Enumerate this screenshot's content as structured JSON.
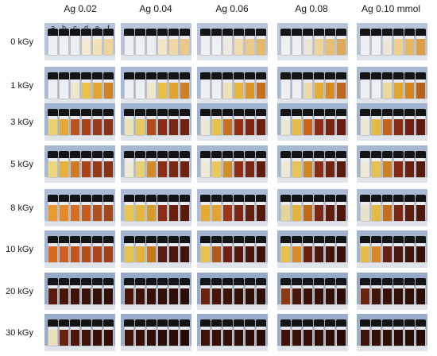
{
  "columns": [
    "Ag 0.02",
    "Ag 0.04",
    "Ag 0.06",
    "Ag 0.08",
    "Ag 0.10 mmol"
  ],
  "rows": [
    "0 kGy",
    "1 kGy",
    "3 kGy",
    "5 kGy",
    "8 kGy",
    "10 kGy",
    "20 kGy",
    "30 kGy"
  ],
  "vial_letters": [
    "a",
    "b",
    "c",
    "d",
    "e",
    "f"
  ],
  "colors": {
    "background": "#ffffff",
    "photo_bg": "#a9b9d2",
    "bench": "#dfe3ea",
    "cap": "#141414"
  },
  "photo_backgrounds": [
    "#b7c5dc",
    "#a8b9d4",
    "#9fb2cf",
    "#a6b7d3",
    "#acbcd6",
    "#a2b4d1",
    "#96a9c7",
    "#9aadca"
  ],
  "vial_colors": [
    [
      [
        "#eef0f3",
        "#eef0f3",
        "#eceef0",
        "#f3ead1",
        "#f2e2b6",
        "#eed39a"
      ],
      [
        "#eef0f3",
        "#eef0f3",
        "#eceef0",
        "#f2e6c4",
        "#efd8a2",
        "#ebc887"
      ],
      [
        "#eef0f3",
        "#eef0f3",
        "#ece9e0",
        "#f0dcaa",
        "#ebcb86",
        "#e6b86a"
      ],
      [
        "#eef0f3",
        "#eef0f3",
        "#ebe6d8",
        "#eed59a",
        "#e7bf73",
        "#e0a955"
      ],
      [
        "#eef0f3",
        "#eef0f3",
        "#ebe6d8",
        "#ecd08c",
        "#e5b864",
        "#dd9e45"
      ]
    ],
    [
      [
        "#eef0f3",
        "#eef0f3",
        "#ece6cf",
        "#e9c04a",
        "#e3a52b",
        "#cf8524"
      ],
      [
        "#eef0f3",
        "#eef0f3",
        "#ede7cd",
        "#e8bf47",
        "#e2a42a",
        "#cd8022"
      ],
      [
        "#eef0f3",
        "#eef0f3",
        "#ece2bc",
        "#e6b53d",
        "#dc9427",
        "#c3701f"
      ],
      [
        "#eef0f3",
        "#eef0f3",
        "#eadcaa",
        "#e4ad35",
        "#d88b24",
        "#bd661c"
      ],
      [
        "#eef0f3",
        "#eef0f3",
        "#e9d79b",
        "#e3a630",
        "#d58422",
        "#b85f1a"
      ]
    ],
    [
      [
        "#ebd26e",
        "#e4a836",
        "#b9541c",
        "#a8431a",
        "#9a3a18",
        "#8c3316"
      ],
      [
        "#eae3b8",
        "#e6c760",
        "#b24d1b",
        "#8a2c14",
        "#7a2612",
        "#6e2210"
      ],
      [
        "#ece8d2",
        "#e7bf4c",
        "#c9701f",
        "#932f15",
        "#7e2612",
        "#6b1f0f"
      ],
      [
        "#ece8d2",
        "#e6bd49",
        "#c8681e",
        "#8f2d14",
        "#772311",
        "#661d0e"
      ],
      [
        "#ece8d2",
        "#e5b946",
        "#c5631d",
        "#8b2b13",
        "#722110",
        "#611b0d"
      ]
    ],
    [
      [
        "#ebd77e",
        "#e7b23a",
        "#d27a21",
        "#a8431a",
        "#963918",
        "#893216"
      ],
      [
        "#ece9d6",
        "#e7cf74",
        "#d08a2a",
        "#8c2d14",
        "#7c2712",
        "#6f2210"
      ],
      [
        "#ece9d6",
        "#e8c95c",
        "#d18d27",
        "#8f2e15",
        "#7a2612",
        "#5f1c0d"
      ],
      [
        "#ece9d6",
        "#e6c557",
        "#ce8624",
        "#8a2b14",
        "#712211",
        "#5a1a0c"
      ],
      [
        "#ece9d6",
        "#e5c152",
        "#cb8022",
        "#872913",
        "#6c2010",
        "#56190b"
      ]
    ],
    [
      [
        "#e89a2e",
        "#e48a28",
        "#d56f22",
        "#c35d1f",
        "#b0511d",
        "#a3491b"
      ],
      [
        "#e9c64e",
        "#e4b63c",
        "#d99a2c",
        "#8d2d14",
        "#6b2010",
        "#5a1a0c"
      ],
      [
        "#e6a931",
        "#e2a42e",
        "#9c3717",
        "#7a2612",
        "#62200e",
        "#55190b"
      ],
      [
        "#e4d49a",
        "#e3b43d",
        "#c06a1e",
        "#7b2612",
        "#5e1d0d",
        "#4f170a"
      ],
      [
        "#e6e2cc",
        "#e4ba44",
        "#c2701f",
        "#7d2713",
        "#5f1d0d",
        "#50180a"
      ]
    ],
    [
      [
        "#d96a20",
        "#cf5f1e",
        "#c2541c",
        "#b74d1b",
        "#ad461a",
        "#a34019"
      ],
      [
        "#e7c24a",
        "#e3b23b",
        "#c6761f",
        "#5d1c0d",
        "#4d160a",
        "#431309"
      ],
      [
        "#e8c24c",
        "#b35a1b",
        "#6e2210",
        "#55190b",
        "#481509",
        "#3f1208"
      ],
      [
        "#e7c04a",
        "#d98c27",
        "#6a210f",
        "#4e170a",
        "#421309",
        "#3a1108"
      ],
      [
        "#e6bd48",
        "#d98726",
        "#67200f",
        "#4c170a",
        "#401309",
        "#381007"
      ]
    ],
    [
      [
        "#5a1a0c",
        "#4b160a",
        "#3f1208",
        "#3a1108",
        "#351007",
        "#310f07"
      ],
      [
        "#4a1509",
        "#3e1208",
        "#371007",
        "#320f07",
        "#2e0e06",
        "#2a0d06"
      ],
      [
        "#6b2310",
        "#4a1509",
        "#3b1108",
        "#341007",
        "#300f07",
        "#2c0e06"
      ],
      [
        "#8d3a16",
        "#4b160a",
        "#3c1208",
        "#351007",
        "#311007",
        "#2d0e06"
      ],
      [
        "#6c2410",
        "#461509",
        "#391108",
        "#331007",
        "#2f0e06",
        "#2b0d06"
      ]
    ],
    [
      [
        "#e9e0b8",
        "#6b210f",
        "#4c170a",
        "#3f1208",
        "#381007",
        "#330f07"
      ],
      [
        "#3e1208",
        "#361007",
        "#310f07",
        "#2d0e06",
        "#2a0d06",
        "#270c05"
      ],
      [
        "#3f1208",
        "#371007",
        "#320f07",
        "#2e0e06",
        "#2b0d06",
        "#280c05"
      ],
      [
        "#401309",
        "#381108",
        "#330f07",
        "#2f0e06",
        "#2c0d06",
        "#290c05"
      ],
      [
        "#3d1208",
        "#351007",
        "#300f07",
        "#2c0e06",
        "#290d06",
        "#260c05"
      ]
    ]
  ]
}
